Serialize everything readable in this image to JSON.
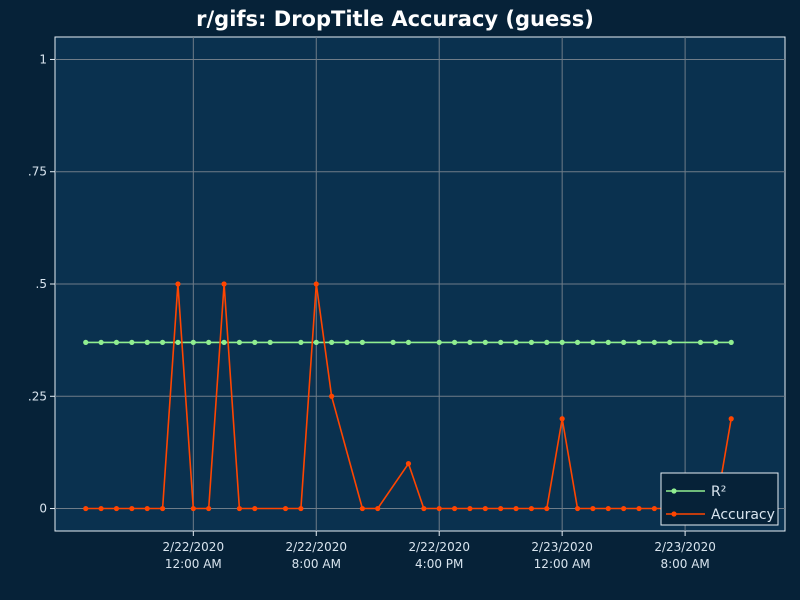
{
  "chart_data": {
    "type": "line",
    "title": "r/gifs: DropTitle Accuracy (guess)",
    "xlabel": "",
    "ylabel": "",
    "ylim": [
      -0.05,
      1.05
    ],
    "xlim": [
      "2020-02-21T15:00",
      "2020-02-23T14:30"
    ],
    "y_ticks": [
      {
        "value": 0,
        "label": "0"
      },
      {
        "value": 0.25,
        "label": ".25"
      },
      {
        "value": 0.5,
        "label": ".5"
      },
      {
        "value": 0.75,
        "label": ".75"
      },
      {
        "value": 1,
        "label": "1"
      }
    ],
    "x_ticks": [
      {
        "value": "2020-02-22T00:00",
        "date": "2/22/2020",
        "time": "12:00 AM"
      },
      {
        "value": "2020-02-22T08:00",
        "date": "2/22/2020",
        "time": "8:00 AM"
      },
      {
        "value": "2020-02-22T16:00",
        "date": "2/22/2020",
        "time": "4:00 PM"
      },
      {
        "value": "2020-02-23T00:00",
        "date": "2/23/2020",
        "time": "12:00 AM"
      },
      {
        "value": "2020-02-23T08:00",
        "date": "2/23/2020",
        "time": "8:00 AM"
      }
    ],
    "grid": true,
    "legend_position": "bottom-right",
    "series": [
      {
        "name": "R²",
        "color": "#90ee90",
        "points": [
          [
            "2020-02-21T17:00",
            0.37
          ],
          [
            "2020-02-21T18:00",
            0.37
          ],
          [
            "2020-02-21T19:00",
            0.37
          ],
          [
            "2020-02-21T20:00",
            0.37
          ],
          [
            "2020-02-21T21:00",
            0.37
          ],
          [
            "2020-02-21T22:00",
            0.37
          ],
          [
            "2020-02-21T23:00",
            0.37
          ],
          [
            "2020-02-22T00:00",
            0.37
          ],
          [
            "2020-02-22T01:00",
            0.37
          ],
          [
            "2020-02-22T02:00",
            0.37
          ],
          [
            "2020-02-22T03:00",
            0.37
          ],
          [
            "2020-02-22T04:00",
            0.37
          ],
          [
            "2020-02-22T05:00",
            0.37
          ],
          [
            "2020-02-22T07:00",
            0.37
          ],
          [
            "2020-02-22T08:00",
            0.37
          ],
          [
            "2020-02-22T09:00",
            0.37
          ],
          [
            "2020-02-22T10:00",
            0.37
          ],
          [
            "2020-02-22T11:00",
            0.37
          ],
          [
            "2020-02-22T13:00",
            0.37
          ],
          [
            "2020-02-22T14:00",
            0.37
          ],
          [
            "2020-02-22T16:00",
            0.37
          ],
          [
            "2020-02-22T17:00",
            0.37
          ],
          [
            "2020-02-22T18:00",
            0.37
          ],
          [
            "2020-02-22T19:00",
            0.37
          ],
          [
            "2020-02-22T20:00",
            0.37
          ],
          [
            "2020-02-22T21:00",
            0.37
          ],
          [
            "2020-02-22T22:00",
            0.37
          ],
          [
            "2020-02-22T23:00",
            0.37
          ],
          [
            "2020-02-23T00:00",
            0.37
          ],
          [
            "2020-02-23T01:00",
            0.37
          ],
          [
            "2020-02-23T02:00",
            0.37
          ],
          [
            "2020-02-23T03:00",
            0.37
          ],
          [
            "2020-02-23T04:00",
            0.37
          ],
          [
            "2020-02-23T05:00",
            0.37
          ],
          [
            "2020-02-23T06:00",
            0.37
          ],
          [
            "2020-02-23T07:00",
            0.37
          ],
          [
            "2020-02-23T09:00",
            0.37
          ],
          [
            "2020-02-23T10:00",
            0.37
          ],
          [
            "2020-02-23T11:00",
            0.37
          ]
        ]
      },
      {
        "name": "Accuracy",
        "color": "#ff4500",
        "points": [
          [
            "2020-02-21T17:00",
            0
          ],
          [
            "2020-02-21T18:00",
            0
          ],
          [
            "2020-02-21T19:00",
            0
          ],
          [
            "2020-02-21T20:00",
            0
          ],
          [
            "2020-02-21T21:00",
            0
          ],
          [
            "2020-02-21T22:00",
            0
          ],
          [
            "2020-02-21T23:00",
            0.5
          ],
          [
            "2020-02-22T00:00",
            0
          ],
          [
            "2020-02-22T01:00",
            0
          ],
          [
            "2020-02-22T02:00",
            0.5
          ],
          [
            "2020-02-22T03:00",
            0
          ],
          [
            "2020-02-22T04:00",
            0
          ],
          [
            "2020-02-22T06:00",
            0
          ],
          [
            "2020-02-22T07:00",
            0
          ],
          [
            "2020-02-22T08:00",
            0.5
          ],
          [
            "2020-02-22T09:00",
            0.25
          ],
          [
            "2020-02-22T11:00",
            0
          ],
          [
            "2020-02-22T12:00",
            0
          ],
          [
            "2020-02-22T14:00",
            0.1
          ],
          [
            "2020-02-22T15:00",
            0
          ],
          [
            "2020-02-22T16:00",
            0
          ],
          [
            "2020-02-22T17:00",
            0
          ],
          [
            "2020-02-22T18:00",
            0
          ],
          [
            "2020-02-22T19:00",
            0
          ],
          [
            "2020-02-22T20:00",
            0
          ],
          [
            "2020-02-22T21:00",
            0
          ],
          [
            "2020-02-22T22:00",
            0
          ],
          [
            "2020-02-22T23:00",
            0
          ],
          [
            "2020-02-23T00:00",
            0.2
          ],
          [
            "2020-02-23T01:00",
            0
          ],
          [
            "2020-02-23T02:00",
            0
          ],
          [
            "2020-02-23T03:00",
            0
          ],
          [
            "2020-02-23T04:00",
            0
          ],
          [
            "2020-02-23T05:00",
            0
          ],
          [
            "2020-02-23T06:00",
            0
          ],
          [
            "2020-02-23T07:00",
            0
          ],
          [
            "2020-02-23T09:00",
            0
          ],
          [
            "2020-02-23T10:00",
            0
          ],
          [
            "2020-02-23T11:00",
            0.2
          ]
        ]
      }
    ]
  }
}
